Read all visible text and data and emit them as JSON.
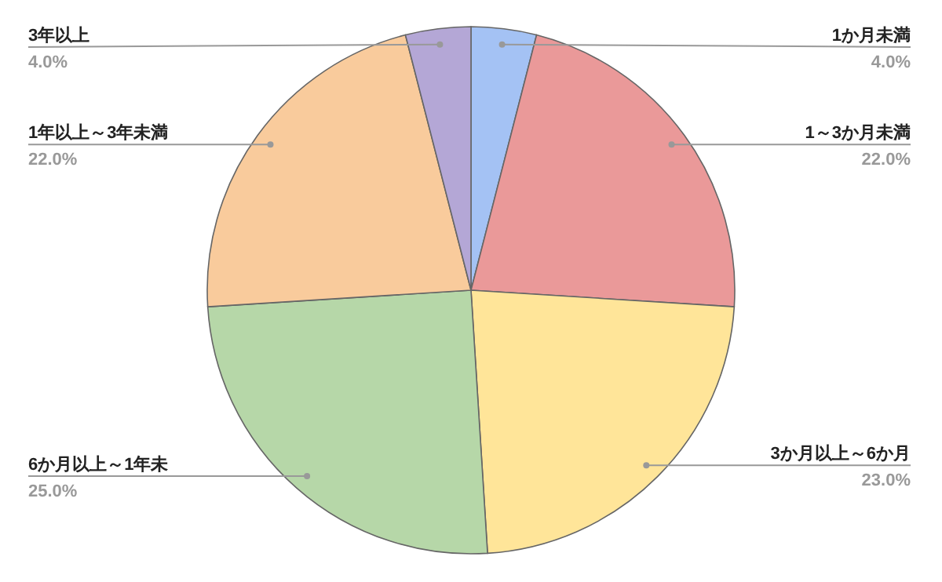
{
  "chart_data": {
    "type": "pie",
    "categories": [
      "1か月未満",
      "1～3か月未満",
      "3か月以上～6か月",
      "6か月以上～1年未",
      "1年以上～3年未満",
      "3年以上"
    ],
    "values": [
      4.0,
      22.0,
      23.0,
      25.0,
      22.0,
      4.0
    ],
    "colors": [
      "#a4c2f4",
      "#ea9999",
      "#ffe599",
      "#b6d7a8",
      "#f9cb9c",
      "#b4a7d6"
    ],
    "value_labels": [
      "4.0%",
      "22.0%",
      "23.0%",
      "25.0%",
      "22.0%",
      "4.0%"
    ]
  }
}
